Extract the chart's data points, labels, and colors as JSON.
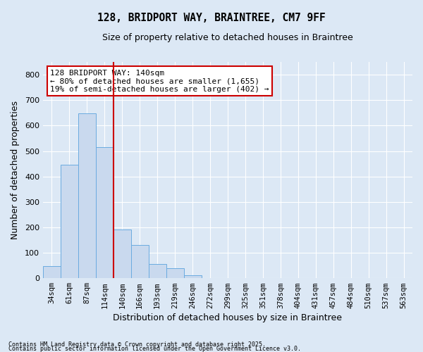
{
  "title_line1": "128, BRIDPORT WAY, BRAINTREE, CM7 9FF",
  "title_line2": "Size of property relative to detached houses in Braintree",
  "xlabel": "Distribution of detached houses by size in Braintree",
  "ylabel": "Number of detached properties",
  "bar_labels": [
    "34sqm",
    "61sqm",
    "87sqm",
    "114sqm",
    "140sqm",
    "166sqm",
    "193sqm",
    "219sqm",
    "246sqm",
    "272sqm",
    "299sqm",
    "325sqm",
    "351sqm",
    "378sqm",
    "404sqm",
    "431sqm",
    "457sqm",
    "484sqm",
    "510sqm",
    "537sqm",
    "563sqm"
  ],
  "bar_values": [
    47,
    447,
    648,
    515,
    192,
    130,
    57,
    40,
    12,
    0,
    0,
    0,
    0,
    0,
    0,
    0,
    0,
    0,
    0,
    0,
    0
  ],
  "bar_color": "#c9d9ee",
  "bar_edge_color": "#6aabe0",
  "vline_color": "#cc0000",
  "annotation_title": "128 BRIDPORT WAY: 140sqm",
  "annotation_line2": "← 80% of detached houses are smaller (1,655)",
  "annotation_line3": "19% of semi-detached houses are larger (402) →",
  "annotation_box_edge_color": "#cc0000",
  "ylim": [
    0,
    850
  ],
  "yticks": [
    0,
    100,
    200,
    300,
    400,
    500,
    600,
    700,
    800
  ],
  "background_color": "#dce8f5",
  "grid_color": "#ffffff",
  "footnote_line1": "Contains HM Land Registry data © Crown copyright and database right 2025.",
  "footnote_line2": "Contains public sector information licensed under the Open Government Licence v3.0."
}
